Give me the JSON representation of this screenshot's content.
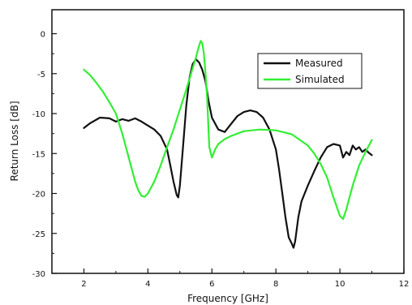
{
  "chart_data": {
    "type": "line",
    "title": "",
    "xlabel": "Frequency [GHz]",
    "ylabel": "Return Loss [dB]",
    "xlim": [
      1,
      12
    ],
    "ylim": [
      -30,
      3
    ],
    "x_ticks": [
      "2",
      "4",
      "6",
      "8",
      "10",
      "12"
    ],
    "y_ticks": [
      "0",
      "-5",
      "-10",
      "-15",
      "-20",
      "-25",
      "-30"
    ],
    "grid": false,
    "legend_position": "top-right",
    "series": [
      {
        "name": "Measured",
        "color": "#111111",
        "x": [
          2.0,
          2.2,
          2.5,
          2.8,
          3.0,
          3.2,
          3.4,
          3.6,
          3.8,
          4.0,
          4.2,
          4.4,
          4.6,
          4.7,
          4.8,
          4.9,
          4.95,
          5.0,
          5.1,
          5.2,
          5.3,
          5.4,
          5.5,
          5.6,
          5.7,
          5.8,
          5.9,
          6.0,
          6.2,
          6.4,
          6.6,
          6.8,
          7.0,
          7.2,
          7.4,
          7.6,
          7.8,
          8.0,
          8.1,
          8.2,
          8.3,
          8.4,
          8.5,
          8.55,
          8.6,
          8.7,
          8.8,
          9.0,
          9.2,
          9.4,
          9.6,
          9.8,
          10.0,
          10.1,
          10.2,
          10.3,
          10.4,
          10.5,
          10.6,
          10.7,
          10.8,
          10.9,
          11.0
        ],
        "y": [
          -11.8,
          -11.2,
          -10.5,
          -10.6,
          -11.0,
          -10.7,
          -10.9,
          -10.6,
          -11.0,
          -11.5,
          -12.0,
          -12.8,
          -14.5,
          -16.5,
          -18.5,
          -20.2,
          -20.5,
          -19.0,
          -14.0,
          -9.0,
          -5.5,
          -3.8,
          -3.2,
          -3.6,
          -4.5,
          -6.0,
          -8.5,
          -10.5,
          -12.0,
          -12.3,
          -11.3,
          -10.3,
          -9.8,
          -9.6,
          -9.8,
          -10.5,
          -12.0,
          -14.5,
          -17.0,
          -20.0,
          -23.0,
          -25.5,
          -26.3,
          -26.8,
          -26.0,
          -23.0,
          -21.0,
          -19.0,
          -17.2,
          -15.5,
          -14.2,
          -13.8,
          -14.0,
          -15.5,
          -14.8,
          -15.2,
          -14.0,
          -14.5,
          -14.2,
          -14.8,
          -14.5,
          -14.9,
          -15.2
        ]
      },
      {
        "name": "Simulated",
        "color": "#33ee33",
        "x": [
          2.0,
          2.2,
          2.4,
          2.6,
          2.8,
          3.0,
          3.2,
          3.4,
          3.6,
          3.7,
          3.8,
          3.9,
          4.0,
          4.2,
          4.4,
          4.6,
          4.8,
          5.0,
          5.2,
          5.4,
          5.5,
          5.6,
          5.65,
          5.7,
          5.75,
          5.8,
          5.85,
          5.9,
          5.92,
          6.0,
          6.1,
          6.2,
          6.4,
          6.6,
          6.8,
          7.0,
          7.5,
          8.0,
          8.5,
          9.0,
          9.2,
          9.4,
          9.6,
          9.8,
          10.0,
          10.1,
          10.2,
          10.3,
          10.4,
          10.6,
          10.8,
          11.0
        ],
        "y": [
          -4.5,
          -5.2,
          -6.2,
          -7.3,
          -8.6,
          -10.0,
          -12.5,
          -15.5,
          -18.5,
          -19.6,
          -20.3,
          -20.4,
          -20.0,
          -18.5,
          -16.5,
          -14.2,
          -12.0,
          -9.5,
          -7.0,
          -4.3,
          -3.0,
          -1.5,
          -0.9,
          -1.2,
          -2.5,
          -5.0,
          -8.0,
          -12.5,
          -14.2,
          -15.5,
          -14.5,
          -13.8,
          -13.2,
          -12.8,
          -12.5,
          -12.2,
          -12.0,
          -12.1,
          -12.6,
          -14.0,
          -15.0,
          -16.3,
          -18.0,
          -20.5,
          -22.8,
          -23.2,
          -22.0,
          -20.5,
          -19.0,
          -16.5,
          -14.8,
          -13.3
        ]
      }
    ]
  }
}
